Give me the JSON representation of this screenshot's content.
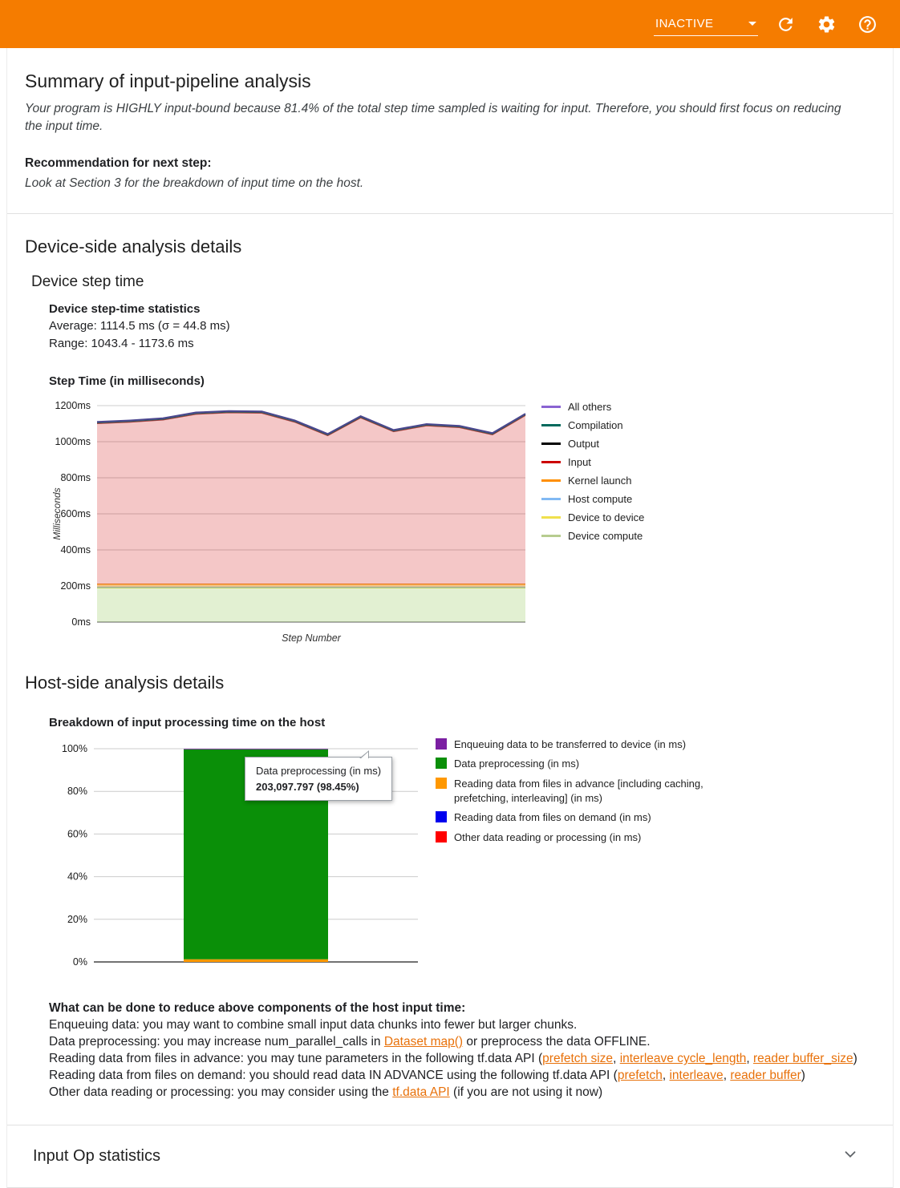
{
  "header": {
    "run_status": "INACTIVE",
    "icons": [
      "refresh-icon",
      "settings-icon",
      "help-icon"
    ]
  },
  "summary": {
    "title": "Summary of input-pipeline analysis",
    "body": "Your program is HIGHLY input-bound because 81.4% of the total step time sampled is waiting for input. Therefore, you should first focus on reducing the input time.",
    "recommendation_label": "Recommendation for next step:",
    "recommendation_body": "Look at Section 3 for the breakdown of input time on the host."
  },
  "device_section": {
    "title": "Device-side analysis details",
    "subtitle": "Device step time",
    "stats_title": "Device step-time statistics",
    "stats_average": "Average: 1114.5 ms (σ = 44.8 ms)",
    "stats_range": "Range: 1043.4 - 1173.6 ms"
  },
  "host_section": {
    "title": "Host-side analysis details",
    "advice_title": "What can be done to reduce above components of the host input time:",
    "advice_lines": [
      {
        "segments": [
          {
            "text": "Enqueuing data: you may want to combine small input data chunks into fewer but larger chunks."
          }
        ]
      },
      {
        "segments": [
          {
            "text": "Data preprocessing: you may increase num_parallel_calls in "
          },
          {
            "text": "Dataset map()",
            "link": true,
            "name": "dataset-map-link"
          },
          {
            "text": " or preprocess the data OFFLINE."
          }
        ]
      },
      {
        "segments": [
          {
            "text": "Reading data from files in advance: you may tune parameters in the following tf.data API ("
          },
          {
            "text": "prefetch size",
            "link": true,
            "name": "prefetch-size-link"
          },
          {
            "text": ", "
          },
          {
            "text": "interleave cycle_length",
            "link": true,
            "name": "interleave-cycle-length-link"
          },
          {
            "text": ", "
          },
          {
            "text": "reader buffer_size",
            "link": true,
            "name": "reader-buffer-size-link"
          },
          {
            "text": ")"
          }
        ]
      },
      {
        "segments": [
          {
            "text": "Reading data from files on demand: you should read data IN ADVANCE using the following tf.data API ("
          },
          {
            "text": "prefetch",
            "link": true,
            "name": "prefetch-link"
          },
          {
            "text": ", "
          },
          {
            "text": "interleave",
            "link": true,
            "name": "interleave-link"
          },
          {
            "text": ", "
          },
          {
            "text": "reader buffer",
            "link": true,
            "name": "reader-buffer-link"
          },
          {
            "text": ")"
          }
        ]
      },
      {
        "segments": [
          {
            "text": "Other data reading or processing: you may consider using the "
          },
          {
            "text": "tf.data API",
            "link": true,
            "name": "tf-data-api-link"
          },
          {
            "text": " (if you are not using it now)"
          }
        ]
      }
    ]
  },
  "input_op_section": {
    "title": "Input Op statistics"
  },
  "chart_data": [
    {
      "type": "area",
      "title": "Step Time (in milliseconds)",
      "xlabel": "Step Number",
      "ylabel": "Milliseconds",
      "ylim": [
        0,
        1200
      ],
      "y_tick_step": 200,
      "y_tick_suffix": "ms",
      "grid": true,
      "legend_position": "right",
      "x": [
        1,
        2,
        3,
        4,
        5,
        6,
        7,
        8,
        9,
        10,
        11,
        12,
        13,
        14
      ],
      "series": [
        {
          "name": "Device compute",
          "fill": "#8bc34a",
          "fill_opacity": 0.25,
          "line": "#aec965",
          "legend_color": "#b7cc8f",
          "line_width": 1.4,
          "values": 190
        },
        {
          "name": "Device to device",
          "fill": "#f7e04a",
          "fill_opacity": 0.5,
          "line": "#e6ce4a",
          "legend_color": "#f0e04d",
          "line_width": 1,
          "values": 2
        },
        {
          "name": "Host compute",
          "fill": "#90caf9",
          "fill_opacity": 0.5,
          "line": "#7fb3e8",
          "legend_color": "#81b9f3",
          "line_width": 1,
          "values": 2
        },
        {
          "name": "Kernel launch",
          "fill": "#ff9800",
          "fill_opacity": 0.4,
          "line": "#ef8d1f",
          "legend_color": "#ff8f00",
          "line_width": 1.4,
          "values": 16
        },
        {
          "name": "Input",
          "fill": "#cc0000",
          "fill_opacity": 0.22,
          "line": "#b23f3f",
          "legend_color": "#cc0000",
          "line_width": 1.5,
          "values": [
            891,
            899,
            911,
            943,
            951,
            949,
            899,
            824,
            923,
            846,
            879,
            869,
            829,
            936
          ]
        },
        {
          "name": "Output",
          "fill": "#666666",
          "fill_opacity": 0.6,
          "line": "#333333",
          "legend_color": "#000000",
          "line_width": 1,
          "values": 3
        },
        {
          "name": "Compilation",
          "fill": "#4db6ac",
          "fill_opacity": 0.6,
          "line": "#2e7d6e",
          "legend_color": "#00695c",
          "line_width": 1,
          "values": 2
        },
        {
          "name": "All others",
          "fill": "#9575cd",
          "fill_opacity": 0.7,
          "line": "#4a458e",
          "legend_color": "#8a63d2",
          "line_width": 2,
          "values": 4
        }
      ]
    },
    {
      "type": "bar",
      "title": "Breakdown of input processing time on the host",
      "ylim": [
        0,
        100
      ],
      "y_tick_step": 20,
      "y_tick_suffix": "%",
      "grid": true,
      "legend_position": "right",
      "stack_bottom_to_top": [
        {
          "name": "Other data reading or processing (in ms)",
          "color": "#ff0000",
          "value": 0
        },
        {
          "name": "Reading data from files on demand (in ms)",
          "color": "#0000ee",
          "value": 0
        },
        {
          "name": "Reading data from files in advance [including caching, prefetching, interleaving] (in ms)",
          "color": "#ff9800",
          "value": 1.25
        },
        {
          "name": "Data preprocessing (in ms)",
          "color": "#0a8f08",
          "value": 98.45
        },
        {
          "name": "Enqueuing data to be transferred to device (in ms)",
          "color": "#7b1fa2",
          "value": 0.3
        }
      ],
      "legend": [
        {
          "label": "Enqueuing data to be transferred to device (in ms)",
          "color": "#7b1fa2"
        },
        {
          "label": "Data preprocessing (in ms)",
          "color": "#0a8f08"
        },
        {
          "label": "Reading data from files in advance [including caching, prefetching, interleaving] (in ms)",
          "color": "#ff9800"
        },
        {
          "label": "Reading data from files on demand (in ms)",
          "color": "#0000ee"
        },
        {
          "label": "Other data reading or processing (in ms)",
          "color": "#ff0000"
        }
      ],
      "tooltip": {
        "title": "Data preprocessing (in ms)",
        "value": "203,097.797 (98.45%)"
      }
    }
  ]
}
